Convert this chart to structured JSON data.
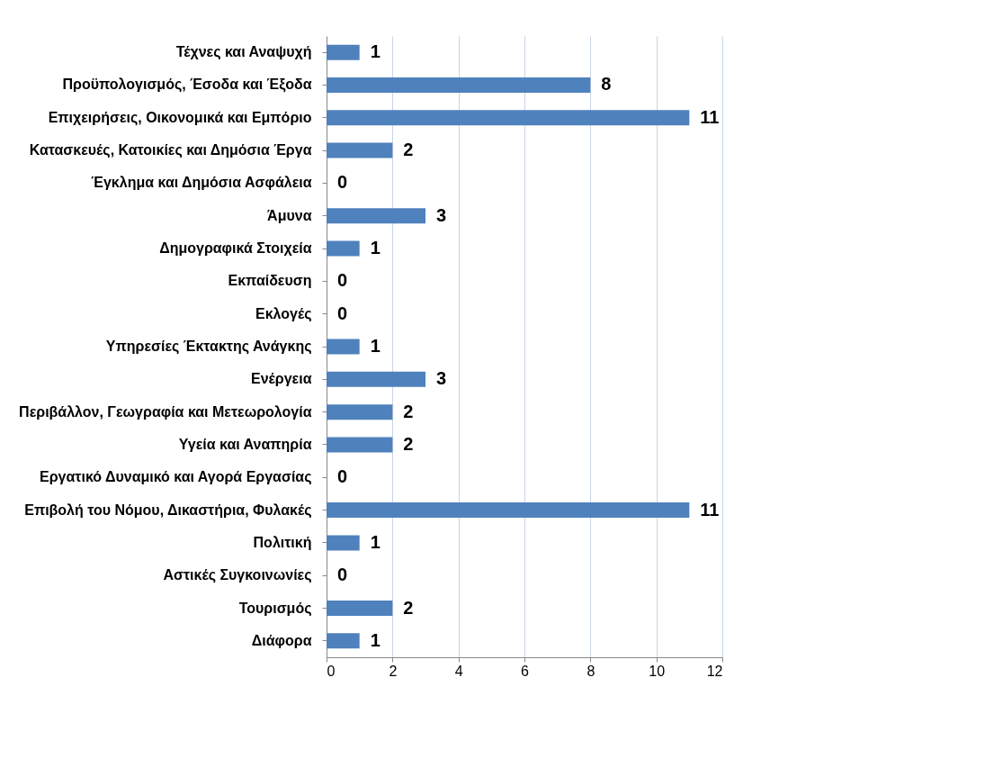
{
  "chart_data": {
    "type": "bar",
    "orientation": "horizontal",
    "categories": [
      "Τέχνες και Αναψυχή",
      "Προϋπολογισμός, Έσοδα και Έξοδα",
      "Επιχειρήσεις, Οικονομικά και Εμπόριο",
      "Κατασκευές, Κατοικίες και Δημόσια Έργα",
      "Έγκλημα και Δημόσια Ασφάλεια",
      "Άμυνα",
      "Δημογραφικά Στοιχεία",
      "Εκπαίδευση",
      "Εκλογές",
      "Υπηρεσίες Έκτακτης Ανάγκης",
      "Ενέργεια",
      "Περιβάλλον, Γεωγραφία και Μετεωρολογία",
      "Υγεία και Αναπηρία",
      "Εργατικό Δυναμικό και Αγορά Εργασίας",
      "Επιβολή του Νόμου, Δικαστήρια, Φυλακές",
      "Πολιτική",
      "Αστικές Συγκοινωνίες",
      "Τουρισμός",
      "Διάφορα"
    ],
    "values": [
      1,
      8,
      11,
      2,
      0,
      3,
      1,
      0,
      0,
      1,
      3,
      2,
      2,
      0,
      11,
      1,
      0,
      2,
      1
    ],
    "color": "#4f81bd",
    "xlim": [
      0,
      12
    ],
    "xticks": [
      0,
      2,
      4,
      6,
      8,
      10,
      12
    ],
    "grid": "x",
    "data_labels": true
  }
}
